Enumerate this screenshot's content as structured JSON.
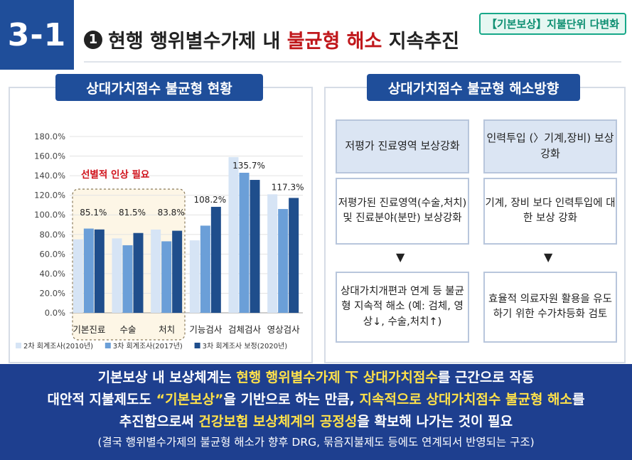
{
  "header": {
    "section_number": "3-1",
    "title_num": "1",
    "title_pre": "현행 행위별수가제 내 ",
    "title_highlight": "불균형 해소",
    "title_post": " 지속추진",
    "tag": "【기본보상】지불단위 다변화"
  },
  "left_panel": {
    "ribbon": "상대가치점수 불균형 현황",
    "annotation": "선별적 인상 필요"
  },
  "chart_data": {
    "type": "bar",
    "categories": [
      "기본진료",
      "수술",
      "처치",
      "기능검사",
      "검체검사",
      "영상검사"
    ],
    "series": [
      {
        "name": "2차 회계조사(2010년)",
        "color": "#d6e4f5",
        "values": [
          75,
          76,
          85,
          74,
          159,
          121
        ]
      },
      {
        "name": "3차 회계조사(2017년)",
        "color": "#6b9fd8",
        "values": [
          86,
          69,
          73,
          89,
          143,
          106
        ]
      },
      {
        "name": "3차 회계조사 보정(2020년)",
        "color": "#1f4e8c",
        "values": [
          85.1,
          81.5,
          83.8,
          108.2,
          135.7,
          117.3
        ]
      }
    ],
    "data_labels": [
      "85.1%",
      "81.5%",
      "83.8%",
      "108.2%",
      "135.7%",
      "117.3%"
    ],
    "yticks": [
      "0.0%",
      "20.0%",
      "40.0%",
      "60.0%",
      "80.0%",
      "100.0%",
      "120.0%",
      "140.0%",
      "160.0%",
      "180.0%"
    ],
    "ylim": [
      0,
      180
    ],
    "grid": true,
    "legend_position": "bottom"
  },
  "right_panel": {
    "ribbon": "상대가치점수 불균형 해소방향",
    "col1": {
      "head": "저평가 진료영역 보상강화",
      "body": "저평가된 진료영역(수술,처치) 및 진료분야(분만) 보상강화",
      "foot": "상대가치개편과 연계 등 불균형 지속적 해소 (예: 검체, 영상↓, 수술,처치↑)"
    },
    "col2": {
      "head": "인력투입 (〉기계,장비) 보상강화",
      "body": "기계, 장비 보다 인력투입에 대한 보상 강화",
      "foot": "효율적 의료자원 활용을 유도하기 위한 수가차등화 검토"
    },
    "arrow": "▼"
  },
  "bottom": {
    "l1a": "기본보상 내 보상체계는 ",
    "l1b": "현행 행위별수가제 下 상대가치점수",
    "l1c": "를 근간으로 작동",
    "l2a": "대안적 지불제도도 ",
    "l2b": "“기본보상”",
    "l2c": "을 기반으로 하는 만큼, ",
    "l2d": "지속적으로 상대가치점수 불균형 해소",
    "l2e": "를",
    "l3a": "추진함으로써 ",
    "l3b": "건강보험 보상체계의 공정성",
    "l3c": "을 확보해 나가는 것이 필요",
    "l4": "(결국 행위별수가제의 불균형 해소가 향후 DRG, 묶음지불제도 등에도 연계되서 반영되는 구조)"
  }
}
